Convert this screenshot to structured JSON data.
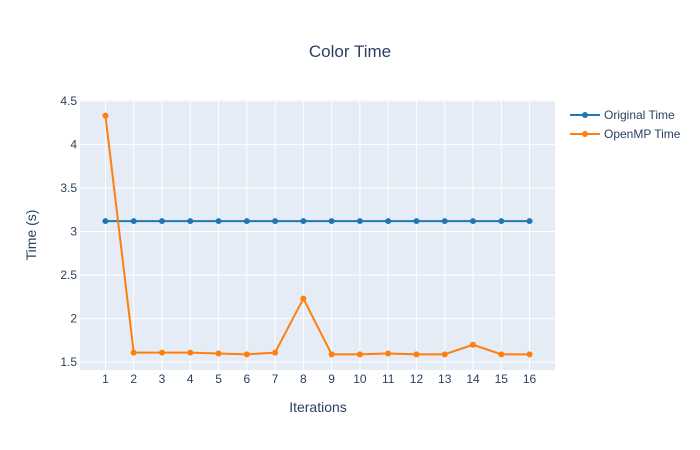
{
  "chart_data": {
    "type": "line",
    "title": "Color Time",
    "xlabel": "Iterations",
    "ylabel": "Time (s)",
    "x": [
      1,
      2,
      3,
      4,
      5,
      6,
      7,
      8,
      9,
      10,
      11,
      12,
      13,
      14,
      15,
      16
    ],
    "x_ticks": [
      "1",
      "2",
      "3",
      "4",
      "5",
      "6",
      "7",
      "8",
      "9",
      "10",
      "11",
      "12",
      "13",
      "14",
      "15",
      "16"
    ],
    "xlim": [
      0.1,
      16.9
    ],
    "y_ticks": [
      "1.5",
      "2",
      "2.5",
      "3",
      "3.5",
      "4",
      "4.5"
    ],
    "y_tick_values": [
      1.5,
      2,
      2.5,
      3,
      3.5,
      4,
      4.5
    ],
    "ylim": [
      1.41,
      4.51
    ],
    "grid": true,
    "legend_position": "top-right",
    "series": [
      {
        "name": "Original Time",
        "color": "#1f77b4",
        "values": [
          3.12,
          3.12,
          3.12,
          3.12,
          3.12,
          3.12,
          3.12,
          3.12,
          3.12,
          3.12,
          3.12,
          3.12,
          3.12,
          3.12,
          3.12,
          3.12
        ]
      },
      {
        "name": "OpenMP Time",
        "color": "#ff7f0e",
        "values": [
          4.33,
          1.61,
          1.61,
          1.61,
          1.6,
          1.59,
          1.61,
          2.23,
          1.59,
          1.59,
          1.6,
          1.59,
          1.59,
          1.7,
          1.59,
          1.59
        ]
      }
    ]
  }
}
